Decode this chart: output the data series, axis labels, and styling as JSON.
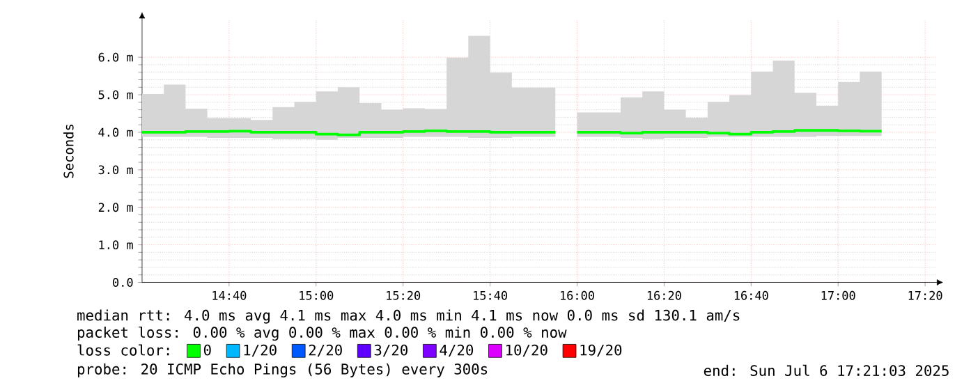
{
  "chart_data": {
    "type": "step",
    "ylabel": "Seconds",
    "legend_title": "loss color:",
    "x": [
      14.3333,
      14.4167,
      14.5,
      14.5833,
      14.6667,
      14.75,
      14.8333,
      14.9167,
      15.0,
      15.0833,
      15.1667,
      15.25,
      15.3333,
      15.4167,
      15.5,
      15.5833,
      15.6667,
      15.75,
      15.8333,
      15.9167,
      15.9583,
      16.0,
      16.0833,
      16.1667,
      16.25,
      16.3333,
      16.4167,
      16.5,
      16.5833,
      16.6667,
      16.75,
      16.8333,
      16.9167,
      17.0,
      17.0833,
      17.1667
    ],
    "series": [
      {
        "name": "0",
        "color": "#00ff00",
        "values": [
          4.0,
          4.0,
          4.02,
          4.02,
          4.03,
          4.0,
          4.0,
          4.0,
          3.95,
          3.93,
          4.0,
          4.0,
          4.02,
          4.04,
          4.02,
          4.02,
          4.0,
          4.0,
          4.0,
          4.0,
          null,
          4.0,
          4.0,
          3.98,
          4.0,
          4.0,
          4.0,
          3.98,
          3.95,
          4.0,
          4.02,
          4.05,
          4.05,
          4.04,
          4.03,
          4.03
        ],
        "lower": [
          3.88,
          3.88,
          3.88,
          3.85,
          3.85,
          3.85,
          3.82,
          3.82,
          3.8,
          3.85,
          3.85,
          3.85,
          3.88,
          3.88,
          3.88,
          3.85,
          3.85,
          3.88,
          3.88,
          3.88,
          null,
          3.88,
          3.88,
          3.85,
          3.82,
          3.85,
          3.85,
          3.88,
          3.88,
          3.88,
          3.88,
          3.88,
          3.9,
          3.9,
          3.9,
          3.9
        ],
        "upper": [
          5.02,
          5.27,
          4.63,
          4.38,
          4.38,
          4.33,
          4.67,
          4.81,
          5.09,
          5.2,
          4.78,
          4.6,
          4.64,
          4.62,
          5.99,
          6.57,
          5.59,
          5.19,
          5.19,
          5.19,
          null,
          4.53,
          4.53,
          4.93,
          5.09,
          4.6,
          4.39,
          4.81,
          4.99,
          5.62,
          5.91,
          5.05,
          4.71,
          5.34,
          5.62,
          5.62
        ]
      },
      {
        "name": "1/20",
        "color": "#00b8ff",
        "values": [
          null,
          null,
          null,
          null,
          null,
          null,
          null,
          null,
          null,
          null,
          null,
          null,
          null,
          null,
          null,
          null,
          null,
          null,
          null,
          null,
          null,
          null,
          null,
          null,
          null,
          null,
          null,
          null,
          null,
          null,
          null,
          null,
          null,
          null,
          null,
          null
        ]
      },
      {
        "name": "2/20",
        "color": "#0059ff",
        "values": [
          null,
          null,
          null,
          null,
          null,
          null,
          null,
          null,
          null,
          null,
          null,
          null,
          null,
          null,
          null,
          null,
          null,
          null,
          null,
          null,
          null,
          null,
          null,
          null,
          null,
          null,
          null,
          null,
          null,
          null,
          null,
          null,
          null,
          null,
          null,
          null
        ]
      },
      {
        "name": "3/20",
        "color": "#5e00ff",
        "values": [
          null,
          null,
          null,
          null,
          null,
          null,
          null,
          null,
          null,
          null,
          null,
          null,
          null,
          null,
          null,
          null,
          null,
          null,
          null,
          null,
          null,
          null,
          null,
          null,
          null,
          null,
          null,
          null,
          null,
          null,
          null,
          null,
          null,
          null,
          null,
          null
        ]
      },
      {
        "name": "4/20",
        "color": "#7e00ff",
        "values": [
          null,
          null,
          null,
          null,
          null,
          null,
          null,
          null,
          null,
          null,
          null,
          null,
          null,
          null,
          null,
          null,
          null,
          null,
          null,
          null,
          null,
          null,
          null,
          null,
          null,
          null,
          null,
          null,
          null,
          null,
          null,
          null,
          null,
          null,
          null,
          null
        ]
      },
      {
        "name": "10/20",
        "color": "#dd00ff",
        "values": [
          null,
          null,
          null,
          null,
          null,
          null,
          null,
          null,
          null,
          null,
          null,
          null,
          null,
          null,
          null,
          null,
          null,
          null,
          null,
          null,
          null,
          null,
          null,
          null,
          null,
          null,
          null,
          null,
          null,
          null,
          null,
          null,
          null,
          null,
          null,
          null
        ]
      },
      {
        "name": "19/20",
        "color": "#ff0000",
        "values": [
          null,
          null,
          null,
          null,
          null,
          null,
          null,
          null,
          null,
          null,
          null,
          null,
          null,
          null,
          null,
          null,
          null,
          null,
          null,
          null,
          null,
          null,
          null,
          null,
          null,
          null,
          null,
          null,
          null,
          null,
          null,
          null,
          null,
          null,
          null,
          null
        ]
      }
    ],
    "xlim": [
      14.3333,
      17.3733
    ],
    "xticks": [
      {
        "value": 14.6667,
        "label": "14:40"
      },
      {
        "value": 15.0,
        "label": "15:00"
      },
      {
        "value": 15.3333,
        "label": "15:20"
      },
      {
        "value": 15.6667,
        "label": "15:40"
      },
      {
        "value": 16.0,
        "label": "16:00"
      },
      {
        "value": 16.3333,
        "label": "16:20"
      },
      {
        "value": 16.6667,
        "label": "16:40"
      },
      {
        "value": 17.0,
        "label": "17:00"
      },
      {
        "value": 17.3333,
        "label": "17:20"
      }
    ],
    "ylim": [
      0,
      7
    ],
    "yticks": [
      {
        "value": 0,
        "label": "0.0"
      },
      {
        "value": 1,
        "label": "1.0 m"
      },
      {
        "value": 2,
        "label": "2.0 m"
      },
      {
        "value": 3,
        "label": "3.0 m"
      },
      {
        "value": 4,
        "label": "4.0 m"
      },
      {
        "value": 5,
        "label": "5.0 m"
      },
      {
        "value": 6,
        "label": "6.0 m"
      }
    ],
    "grid": true,
    "legend": "bottom",
    "marker": "none",
    "annotations": [
      "median rtt: 4.0 ms avg 4.1 ms max 4.0 ms min 4.1 ms now 0.0 ms sd 130.1 am/s",
      "packet loss: 0.00 % avg 0.00 % max 0.00 % min 0.00 % now",
      "probe: 20 ICMP Echo Pings (56 Bytes) every 300s",
      "end: Sun Jul 6 17:21:03 2025"
    ]
  }
}
